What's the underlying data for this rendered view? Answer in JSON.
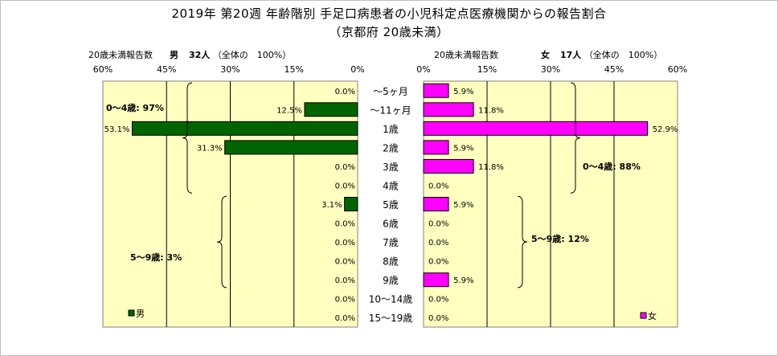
{
  "title": "2019年 第20週 年齢階別 手足口病患者の小児科定点医療機関からの報告割合",
  "subtitle": "（京都府 20歳未満）",
  "male_header": {
    "label": "20歳未満報告数",
    "sex": "男",
    "count": "32人",
    "note": "（全体の　100%）"
  },
  "female_header": {
    "label": "20歳未満報告数",
    "sex": "女",
    "count": "17人",
    "note": "（全体の　100%）"
  },
  "colors": {
    "male": "#006400",
    "female": "#ff00ff",
    "plot_bg": "#ffffc0",
    "bar_stroke": "#000000"
  },
  "chart_data": [
    {
      "type": "bar",
      "orientation": "horizontal",
      "direction": "right-to-left",
      "categories": [
        "～5ヶ月",
        "～11ヶ月",
        "1歳",
        "2歳",
        "3歳",
        "4歳",
        "5歳",
        "6歳",
        "7歳",
        "8歳",
        "9歳",
        "10～14歳",
        "15～19歳"
      ],
      "series": [
        {
          "name": "男",
          "values": [
            0.0,
            12.5,
            53.1,
            31.3,
            0.0,
            0.0,
            3.1,
            0.0,
            0.0,
            0.0,
            0.0,
            0.0,
            0.0
          ]
        }
      ],
      "value_labels": [
        "0.0%",
        "12.5%",
        "53.1%",
        "31.3%",
        "0.0%",
        "0.0%",
        "3.1%",
        "0.0%",
        "0.0%",
        "0.0%",
        "0.0%",
        "0.0%",
        "0.0%"
      ],
      "xlim": [
        0,
        60
      ],
      "ticks": [
        "60%",
        "45%",
        "30%",
        "15%",
        "0%"
      ],
      "grid": true,
      "legend": "bottom-left",
      "groups": [
        {
          "label": "0～4歳: 97%",
          "from": 0,
          "to": 5
        },
        {
          "label": "5～9歳: 3%",
          "from": 6,
          "to": 10
        }
      ]
    },
    {
      "type": "bar",
      "orientation": "horizontal",
      "direction": "left-to-right",
      "categories": [
        "～5ヶ月",
        "～11ヶ月",
        "1歳",
        "2歳",
        "3歳",
        "4歳",
        "5歳",
        "6歳",
        "7歳",
        "8歳",
        "9歳",
        "10～14歳",
        "15～19歳"
      ],
      "series": [
        {
          "name": "女",
          "values": [
            5.9,
            11.8,
            52.9,
            5.9,
            11.8,
            0.0,
            5.9,
            0.0,
            0.0,
            0.0,
            5.9,
            0.0,
            0.0
          ]
        }
      ],
      "value_labels": [
        "5.9%",
        "11.8%",
        "52.9%",
        "5.9%",
        "11.8%",
        "0.0%",
        "5.9%",
        "0.0%",
        "0.0%",
        "0.0%",
        "5.9%",
        "0.0%",
        "0.0%"
      ],
      "xlim": [
        0,
        60
      ],
      "ticks": [
        "0%",
        "15%",
        "30%",
        "45%",
        "60%"
      ],
      "grid": true,
      "legend": "bottom-right",
      "groups": [
        {
          "label": "0～4歳: 88%",
          "from": 0,
          "to": 5
        },
        {
          "label": "5～9歳: 12%",
          "from": 6,
          "to": 10
        }
      ]
    }
  ]
}
